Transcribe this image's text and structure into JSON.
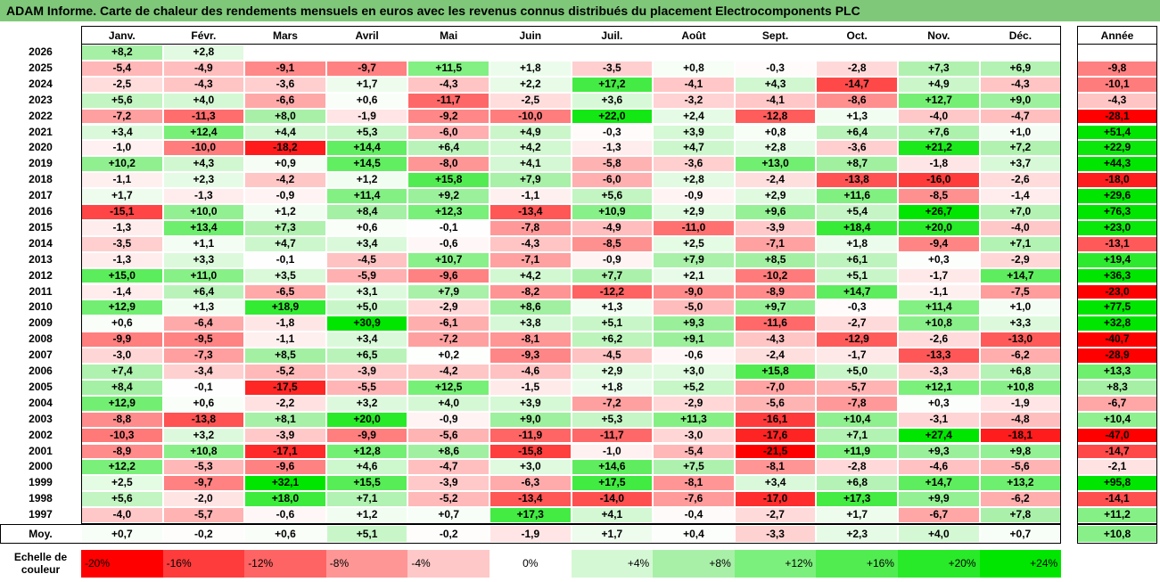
{
  "title": "ADAM Informe. Carte de chaleur des rendements mensuels en euros avec les revenus connus distribués du placement Electrocomponents PLC",
  "chart_data": {
    "type": "heatmap",
    "columns": [
      "Janv.",
      "Févr.",
      "Mars",
      "Avril",
      "Mai",
      "Juin",
      "Juil.",
      "Août",
      "Sept.",
      "Oct.",
      "Nov.",
      "Déc."
    ],
    "annual_label": "Année",
    "avg_label": "Moy.",
    "rows": [
      {
        "year": "2026",
        "months": [
          8.2,
          2.8,
          null,
          null,
          null,
          null,
          null,
          null,
          null,
          null,
          null,
          null
        ],
        "annual": null
      },
      {
        "year": "2025",
        "months": [
          -5.4,
          -4.9,
          -9.1,
          -9.7,
          11.5,
          1.8,
          -3.5,
          0.8,
          -0.3,
          -2.8,
          7.3,
          6.9
        ],
        "annual": -9.8
      },
      {
        "year": "2024",
        "months": [
          -2.5,
          -4.3,
          -3.6,
          1.7,
          -4.3,
          2.2,
          17.2,
          -4.1,
          4.3,
          -14.7,
          4.9,
          -4.3
        ],
        "annual": -10.1
      },
      {
        "year": "2023",
        "months": [
          5.6,
          4.0,
          -6.6,
          0.6,
          -11.7,
          -2.5,
          3.6,
          -3.2,
          -4.1,
          -8.6,
          12.7,
          9.0
        ],
        "annual": -4.3
      },
      {
        "year": "2022",
        "months": [
          -7.2,
          -11.3,
          8.0,
          -1.9,
          -9.2,
          -10.0,
          22.0,
          2.4,
          -12.8,
          1.3,
          -4.0,
          -4.7
        ],
        "annual": -28.1
      },
      {
        "year": "2021",
        "months": [
          3.4,
          12.4,
          4.4,
          5.3,
          -6.0,
          4.9,
          -0.3,
          3.9,
          0.8,
          6.4,
          7.6,
          1.0
        ],
        "annual": 51.4
      },
      {
        "year": "2020",
        "months": [
          -1.0,
          -10.0,
          -18.2,
          14.4,
          6.4,
          4.2,
          -1.3,
          4.7,
          2.8,
          -3.6,
          21.2,
          7.2
        ],
        "annual": 22.9
      },
      {
        "year": "2019",
        "months": [
          10.2,
          4.3,
          0.9,
          14.5,
          -8.0,
          4.1,
          -5.8,
          -3.6,
          13.0,
          8.7,
          -1.8,
          3.7
        ],
        "annual": 44.3
      },
      {
        "year": "2018",
        "months": [
          -1.1,
          2.3,
          -4.2,
          1.2,
          15.8,
          7.9,
          -6.0,
          2.8,
          -2.4,
          -13.8,
          -16.0,
          -2.6
        ],
        "annual": -18.0
      },
      {
        "year": "2017",
        "months": [
          1.7,
          -1.3,
          -0.9,
          11.4,
          9.2,
          -1.1,
          5.6,
          -0.9,
          2.9,
          11.6,
          -8.5,
          -1.4
        ],
        "annual": 29.6
      },
      {
        "year": "2016",
        "months": [
          -15.1,
          10.0,
          1.2,
          8.4,
          12.3,
          -13.4,
          10.9,
          2.9,
          9.6,
          5.4,
          26.7,
          7.0
        ],
        "annual": 76.3
      },
      {
        "year": "2015",
        "months": [
          -1.3,
          13.4,
          7.3,
          0.6,
          -0.1,
          -7.8,
          -4.9,
          -11.0,
          -3.9,
          18.4,
          20.0,
          -4.0
        ],
        "annual": 23.0
      },
      {
        "year": "2014",
        "months": [
          -3.5,
          1.1,
          4.7,
          3.4,
          -0.6,
          -4.3,
          -8.5,
          2.5,
          -7.1,
          1.8,
          -9.4,
          7.1
        ],
        "annual": -13.1
      },
      {
        "year": "2013",
        "months": [
          -1.3,
          3.3,
          -0.1,
          -4.5,
          10.7,
          -7.1,
          -0.9,
          7.9,
          8.5,
          6.1,
          0.3,
          -2.9
        ],
        "annual": 19.4
      },
      {
        "year": "2012",
        "months": [
          15.0,
          11.0,
          3.5,
          -5.9,
          -9.6,
          4.2,
          7.7,
          2.1,
          -10.2,
          5.1,
          -1.7,
          14.7
        ],
        "annual": 36.3
      },
      {
        "year": "2011",
        "months": [
          -1.4,
          6.4,
          -6.5,
          3.1,
          7.9,
          -8.2,
          -12.2,
          -9.0,
          -8.9,
          14.7,
          -1.1,
          -7.5
        ],
        "annual": -23.0
      },
      {
        "year": "2010",
        "months": [
          12.9,
          1.3,
          18.9,
          5.0,
          -2.9,
          8.6,
          1.3,
          -5.0,
          9.7,
          -0.3,
          11.4,
          1.0
        ],
        "annual": 77.5
      },
      {
        "year": "2009",
        "months": [
          0.6,
          -6.4,
          -1.8,
          30.9,
          -6.1,
          3.8,
          5.1,
          9.3,
          -11.6,
          -2.7,
          10.8,
          3.3
        ],
        "annual": 32.8
      },
      {
        "year": "2008",
        "months": [
          -9.9,
          -9.5,
          -1.1,
          3.4,
          -7.2,
          -8.1,
          6.2,
          9.1,
          -4.3,
          -12.9,
          -2.6,
          -13.0
        ],
        "annual": -40.7
      },
      {
        "year": "2007",
        "months": [
          -3.0,
          -7.3,
          8.5,
          6.5,
          0.2,
          -9.3,
          -4.5,
          -0.6,
          -2.4,
          -1.7,
          -13.3,
          -6.2
        ],
        "annual": -28.9
      },
      {
        "year": "2006",
        "months": [
          7.4,
          -3.4,
          -5.2,
          -3.9,
          -4.2,
          -4.6,
          2.9,
          3.0,
          15.8,
          5.0,
          -3.3,
          6.8
        ],
        "annual": 13.3
      },
      {
        "year": "2005",
        "months": [
          8.4,
          -0.1,
          -17.5,
          -5.5,
          12.5,
          -1.5,
          1.8,
          5.2,
          -7.0,
          -5.7,
          12.1,
          10.8
        ],
        "annual": 8.3
      },
      {
        "year": "2004",
        "months": [
          12.9,
          0.6,
          -2.2,
          3.2,
          4.0,
          3.9,
          -7.2,
          -2.9,
          -5.6,
          -7.8,
          0.3,
          -1.9
        ],
        "annual": -6.7
      },
      {
        "year": "2003",
        "months": [
          -8.8,
          -13.8,
          8.1,
          20.0,
          -0.9,
          9.0,
          5.3,
          11.3,
          -16.1,
          10.4,
          -3.1,
          -4.8
        ],
        "annual": 10.4
      },
      {
        "year": "2002",
        "months": [
          -10.3,
          3.2,
          -3.9,
          -9.9,
          -5.6,
          -11.9,
          -11.7,
          -3.0,
          -17.6,
          7.1,
          27.4,
          -18.1
        ],
        "annual": -47.0
      },
      {
        "year": "2001",
        "months": [
          -8.9,
          10.8,
          -17.1,
          12.8,
          8.6,
          -15.8,
          -1.0,
          -5.4,
          -21.5,
          11.9,
          9.3,
          9.8
        ],
        "annual": -14.7
      },
      {
        "year": "2000",
        "months": [
          12.2,
          -5.3,
          -9.6,
          4.6,
          -4.7,
          3.0,
          14.6,
          7.5,
          -8.1,
          -2.8,
          -4.6,
          -5.6
        ],
        "annual": -2.1
      },
      {
        "year": "1999",
        "months": [
          2.5,
          -9.7,
          32.1,
          15.5,
          -3.9,
          -6.3,
          17.5,
          -8.1,
          3.4,
          6.8,
          14.7,
          13.2
        ],
        "annual": 95.8
      },
      {
        "year": "1998",
        "months": [
          5.6,
          -2.0,
          18.0,
          7.1,
          -5.2,
          -13.4,
          -14.0,
          -7.6,
          -17.0,
          17.3,
          9.9,
          -6.2
        ],
        "annual": -14.1
      },
      {
        "year": "1997",
        "months": [
          -4.0,
          -5.7,
          -0.6,
          1.2,
          0.7,
          17.3,
          4.1,
          -0.4,
          -2.7,
          1.7,
          -6.7,
          7.8
        ],
        "annual": 11.2
      }
    ],
    "average": {
      "months": [
        0.7,
        -0.2,
        0.6,
        5.1,
        -0.2,
        -1.9,
        1.7,
        0.4,
        -3.3,
        2.3,
        4.0,
        0.7
      ],
      "annual": 10.8
    },
    "scale": {
      "label": "Echelle de couleur",
      "stops": [
        {
          "value": -20,
          "label": "-20%",
          "color": "#ff0000"
        },
        {
          "value": -16,
          "label": "-16%",
          "color": "#ff3c3c"
        },
        {
          "value": -12,
          "label": "-12%",
          "color": "#ff6464"
        },
        {
          "value": -8,
          "label": "-8%",
          "color": "#ff9696"
        },
        {
          "value": -4,
          "label": "-4%",
          "color": "#ffc8c8"
        },
        {
          "value": 0,
          "label": "0%",
          "color": "#ffffff"
        },
        {
          "value": 4,
          "label": "+4%",
          "color": "#d4f8d4"
        },
        {
          "value": 8,
          "label": "+8%",
          "color": "#a8f0a8"
        },
        {
          "value": 12,
          "label": "+12%",
          "color": "#7cf07c"
        },
        {
          "value": 16,
          "label": "+16%",
          "color": "#50ec50"
        },
        {
          "value": 20,
          "label": "+20%",
          "color": "#28ea28"
        },
        {
          "value": 24,
          "label": "+24%",
          "color": "#00e600"
        }
      ]
    }
  }
}
